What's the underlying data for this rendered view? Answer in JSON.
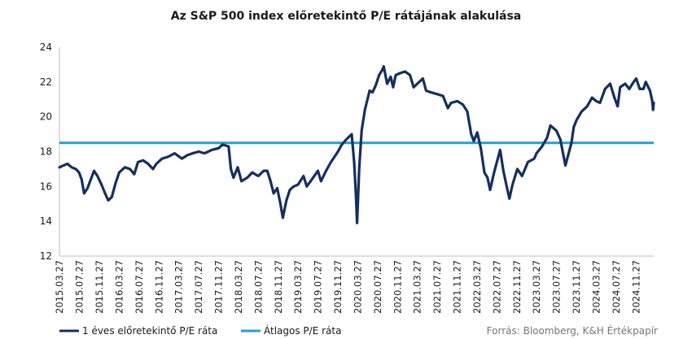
{
  "chart_data": {
    "type": "line",
    "title": "Az S&P 500 index előretekintő P/E rátájának alakulása",
    "ylim": [
      12,
      24
    ],
    "y_ticks": [
      "24",
      "22",
      "20",
      "18",
      "16",
      "14",
      "12"
    ],
    "x_range": [
      "2015-03-27",
      "2025-03-14"
    ],
    "x_tick_labels": [
      "2015.03.27",
      "2015.07.27",
      "2015.11.27",
      "2016.03.27",
      "2016.07.27",
      "2016.11.27",
      "2017.03.27",
      "2017.07.27",
      "2017.11.27",
      "2018.03.27",
      "2018.07.27",
      "2018.11.27",
      "2019.03.27",
      "2019.07.27",
      "2019.11.27",
      "2020.03.27",
      "2020.07.27",
      "2020.11.27",
      "2021.03.27",
      "2021.07.27",
      "2021.11.27",
      "2022.03.27",
      "2022.07.27",
      "2022.11.27",
      "2023.03.27",
      "2023.07.27",
      "2023.11.27",
      "2024.03.27",
      "2024.07.27",
      "2024.11.27"
    ],
    "x_tick_dates": [
      "2015-03-27",
      "2015-07-27",
      "2015-11-27",
      "2016-03-27",
      "2016-07-27",
      "2016-11-27",
      "2017-03-27",
      "2017-07-27",
      "2017-11-27",
      "2018-03-27",
      "2018-07-27",
      "2018-11-27",
      "2019-03-27",
      "2019-07-27",
      "2019-11-27",
      "2020-03-27",
      "2020-07-27",
      "2020-11-27",
      "2021-03-27",
      "2021-07-27",
      "2021-11-27",
      "2022-03-27",
      "2022-07-27",
      "2022-11-27",
      "2023-03-27",
      "2023-07-27",
      "2023-11-27",
      "2024-03-27",
      "2024-07-27",
      "2024-11-27"
    ],
    "grid": false,
    "legend_position": "bottom-left",
    "series": [
      {
        "name": "1 éves előretekintő P/E ráta",
        "color": "#152f5e",
        "x": [
          "2015-03-27",
          "2015-04-20",
          "2015-05-15",
          "2015-06-10",
          "2015-07-05",
          "2015-07-25",
          "2015-08-10",
          "2015-08-25",
          "2015-09-15",
          "2015-10-05",
          "2015-10-25",
          "2015-11-15",
          "2015-12-10",
          "2016-01-05",
          "2016-01-20",
          "2016-02-11",
          "2016-03-05",
          "2016-03-27",
          "2016-05-01",
          "2016-06-01",
          "2016-06-27",
          "2016-07-20",
          "2016-08-20",
          "2016-09-20",
          "2016-10-20",
          "2016-11-10",
          "2016-12-15",
          "2017-01-20",
          "2017-03-01",
          "2017-04-15",
          "2017-05-20",
          "2017-06-20",
          "2017-07-27",
          "2017-09-01",
          "2017-10-15",
          "2017-11-27",
          "2017-12-20",
          "2018-01-26",
          "2018-02-09",
          "2018-02-25",
          "2018-03-23",
          "2018-04-15",
          "2018-05-20",
          "2018-06-20",
          "2018-07-27",
          "2018-08-29",
          "2018-09-20",
          "2018-10-10",
          "2018-10-29",
          "2018-11-20",
          "2018-12-10",
          "2018-12-24",
          "2019-01-15",
          "2019-02-05",
          "2019-03-01",
          "2019-03-27",
          "2019-04-30",
          "2019-05-20",
          "2019-06-20",
          "2019-07-27",
          "2019-08-15",
          "2019-09-15",
          "2019-10-15",
          "2019-11-27",
          "2019-12-20",
          "2020-01-17",
          "2020-02-19",
          "2020-03-05",
          "2020-03-16",
          "2020-03-23",
          "2020-04-05",
          "2020-04-20",
          "2020-05-10",
          "2020-06-08",
          "2020-06-25",
          "2020-07-15",
          "2020-08-05",
          "2020-08-25",
          "2020-09-02",
          "2020-09-23",
          "2020-10-15",
          "2020-10-30",
          "2020-11-15",
          "2020-12-10",
          "2021-01-10",
          "2021-02-10",
          "2021-03-04",
          "2021-03-27",
          "2021-04-30",
          "2021-05-20",
          "2021-06-20",
          "2021-07-27",
          "2021-08-31",
          "2021-09-30",
          "2021-10-20",
          "2021-11-27",
          "2021-12-31",
          "2022-01-27",
          "2022-02-20",
          "2022-03-08",
          "2022-03-29",
          "2022-04-20",
          "2022-05-12",
          "2022-05-31",
          "2022-06-16",
          "2022-07-10",
          "2022-08-16",
          "2022-09-05",
          "2022-09-30",
          "2022-10-12",
          "2022-10-31",
          "2022-11-30",
          "2022-12-28",
          "2023-01-20",
          "2023-02-02",
          "2023-03-13",
          "2023-03-27",
          "2023-04-30",
          "2023-05-31",
          "2023-06-20",
          "2023-07-27",
          "2023-08-20",
          "2023-09-20",
          "2023-10-27",
          "2023-11-10",
          "2023-11-27",
          "2023-12-28",
          "2024-01-31",
          "2024-03-01",
          "2024-03-27",
          "2024-04-19",
          "2024-05-20",
          "2024-06-20",
          "2024-07-16",
          "2024-08-05",
          "2024-08-20",
          "2024-09-20",
          "2024-10-15",
          "2024-11-11",
          "2024-11-27",
          "2024-12-18",
          "2025-01-10",
          "2025-01-24",
          "2025-02-19",
          "2025-03-05",
          "2025-03-10",
          "2025-03-14"
        ],
        "values": [
          17.1,
          17.2,
          17.3,
          17.1,
          17.0,
          16.8,
          16.4,
          15.6,
          15.9,
          16.4,
          16.9,
          16.6,
          16.1,
          15.5,
          15.2,
          15.4,
          16.2,
          16.8,
          17.1,
          17.0,
          16.7,
          17.4,
          17.5,
          17.3,
          17.0,
          17.3,
          17.6,
          17.7,
          17.9,
          17.6,
          17.8,
          17.9,
          18.0,
          17.9,
          18.1,
          18.2,
          18.4,
          18.3,
          17.0,
          16.5,
          17.1,
          16.3,
          16.5,
          16.8,
          16.6,
          16.9,
          16.9,
          16.3,
          15.6,
          15.9,
          15.0,
          14.2,
          15.2,
          15.8,
          16.0,
          16.1,
          16.6,
          16.0,
          16.4,
          16.9,
          16.3,
          16.9,
          17.4,
          18.0,
          18.4,
          18.7,
          19.0,
          17.4,
          15.5,
          13.9,
          17.0,
          19.2,
          20.4,
          21.5,
          21.4,
          21.8,
          22.4,
          22.7,
          22.9,
          21.9,
          22.3,
          21.7,
          22.4,
          22.5,
          22.6,
          22.4,
          21.7,
          21.9,
          22.2,
          21.5,
          21.4,
          21.3,
          21.2,
          20.5,
          20.8,
          20.9,
          20.7,
          20.3,
          19.0,
          18.6,
          19.1,
          18.2,
          16.8,
          16.5,
          15.8,
          16.8,
          18.1,
          16.9,
          15.8,
          15.3,
          16.1,
          17.0,
          16.6,
          17.1,
          17.4,
          17.6,
          17.9,
          18.3,
          18.8,
          19.5,
          19.2,
          18.7,
          17.2,
          18.5,
          19.4,
          19.8,
          20.3,
          20.6,
          21.1,
          20.9,
          20.8,
          21.6,
          21.9,
          21.1,
          20.6,
          21.7,
          21.9,
          21.6,
          22.0,
          22.2,
          21.6,
          21.6,
          22.0,
          21.5,
          20.9,
          20.4,
          20.8
        ]
      },
      {
        "name": "Átlagos P/E ráta",
        "color": "#1f9fd5",
        "x": [
          "2015-03-27",
          "2025-03-14"
        ],
        "values": [
          18.5,
          18.5
        ]
      }
    ],
    "source": "Forrás: Bloomberg, K&H Értékpapír"
  }
}
